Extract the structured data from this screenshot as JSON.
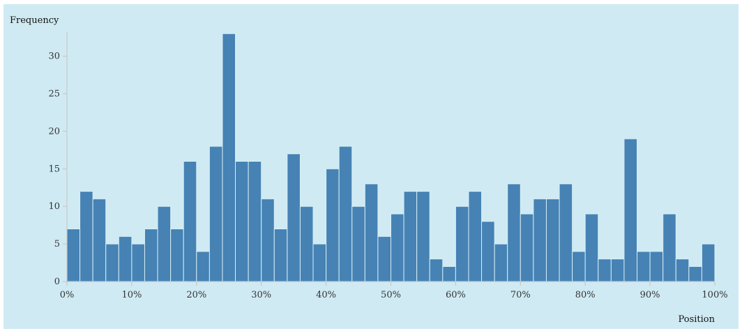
{
  "chart_data": {
    "type": "bar",
    "ylabel": "Frequency",
    "xlabel": "Position",
    "xlim": [
      0,
      100
    ],
    "ylim": [
      0,
      33
    ],
    "yticks": [
      0,
      5,
      10,
      15,
      20,
      25,
      30
    ],
    "xticks": [
      0,
      10,
      20,
      30,
      40,
      50,
      60,
      70,
      80,
      90,
      100
    ],
    "xtick_labels": [
      "0%",
      "10%",
      "20%",
      "30%",
      "40%",
      "50%",
      "60%",
      "70%",
      "80%",
      "90%",
      "100%"
    ],
    "bin_width": 2,
    "values": [
      7,
      12,
      11,
      5,
      6,
      5,
      7,
      10,
      7,
      16,
      4,
      18,
      33,
      16,
      16,
      11,
      7,
      17,
      10,
      5,
      15,
      18,
      10,
      13,
      6,
      9,
      12,
      12,
      3,
      2,
      10,
      12,
      8,
      5,
      13,
      9,
      11,
      11,
      13,
      4,
      9,
      3,
      3,
      19,
      4,
      4,
      9,
      3,
      2,
      5
    ],
    "grid": false,
    "colors": {
      "bar": "#4682b4",
      "background": "#cfeaf3"
    }
  }
}
